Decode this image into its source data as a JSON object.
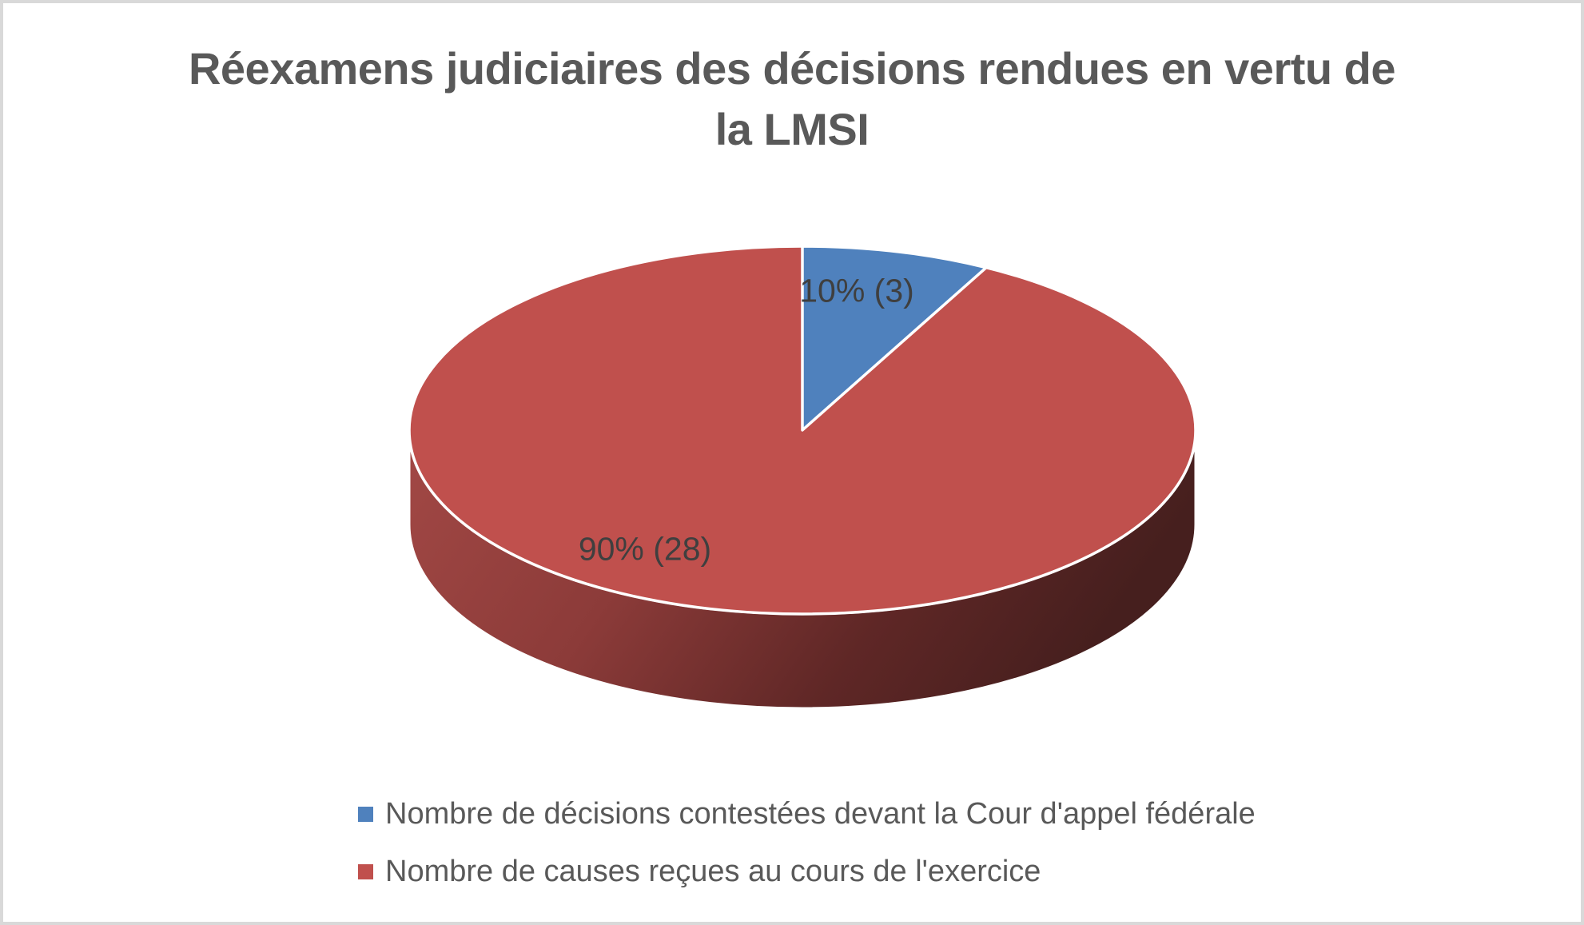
{
  "title": {
    "line1": "Réexamens judiciaires des décisions rendues en vertu de",
    "line2": "la LMSI"
  },
  "pie": {
    "labels": [
      {
        "text": "10% (3)"
      },
      {
        "text": "90% (28)"
      }
    ]
  },
  "legend": {
    "items": [
      {
        "label": "Nombre de décisions contestées devant la Cour d'appel fédérale",
        "color": "#4F81BD"
      },
      {
        "label": "Nombre de causes reçues au cours de l'exercice",
        "color": "#C0504D"
      }
    ]
  },
  "colors": {
    "blue_slice": "#4F81BD",
    "red_slice": "#C0504D",
    "red_side_light": "#A24845",
    "red_side_mid": "#8C3B39",
    "red_side_dark": "#5F2726",
    "red_side_darkest": "#461F1E",
    "title_text": "#595959",
    "label_text": "#3F3F3F",
    "border": "#D9D9D9"
  },
  "chart_data": {
    "type": "pie",
    "style": "3d",
    "title": "Réexamens judiciaires des décisions rendues en vertu de la LMSI",
    "legend_position": "bottom",
    "slices": [
      {
        "name": "Nombre de décisions contestées devant la Cour d'appel fédérale",
        "value": 3,
        "percent": "10%",
        "data_label": "10% (3)",
        "color": "#4F81BD"
      },
      {
        "name": "Nombre de causes reçues au cours de l'exercice",
        "value": 28,
        "percent": "90%",
        "data_label": "90% (28)",
        "color": "#C0504D"
      }
    ]
  }
}
